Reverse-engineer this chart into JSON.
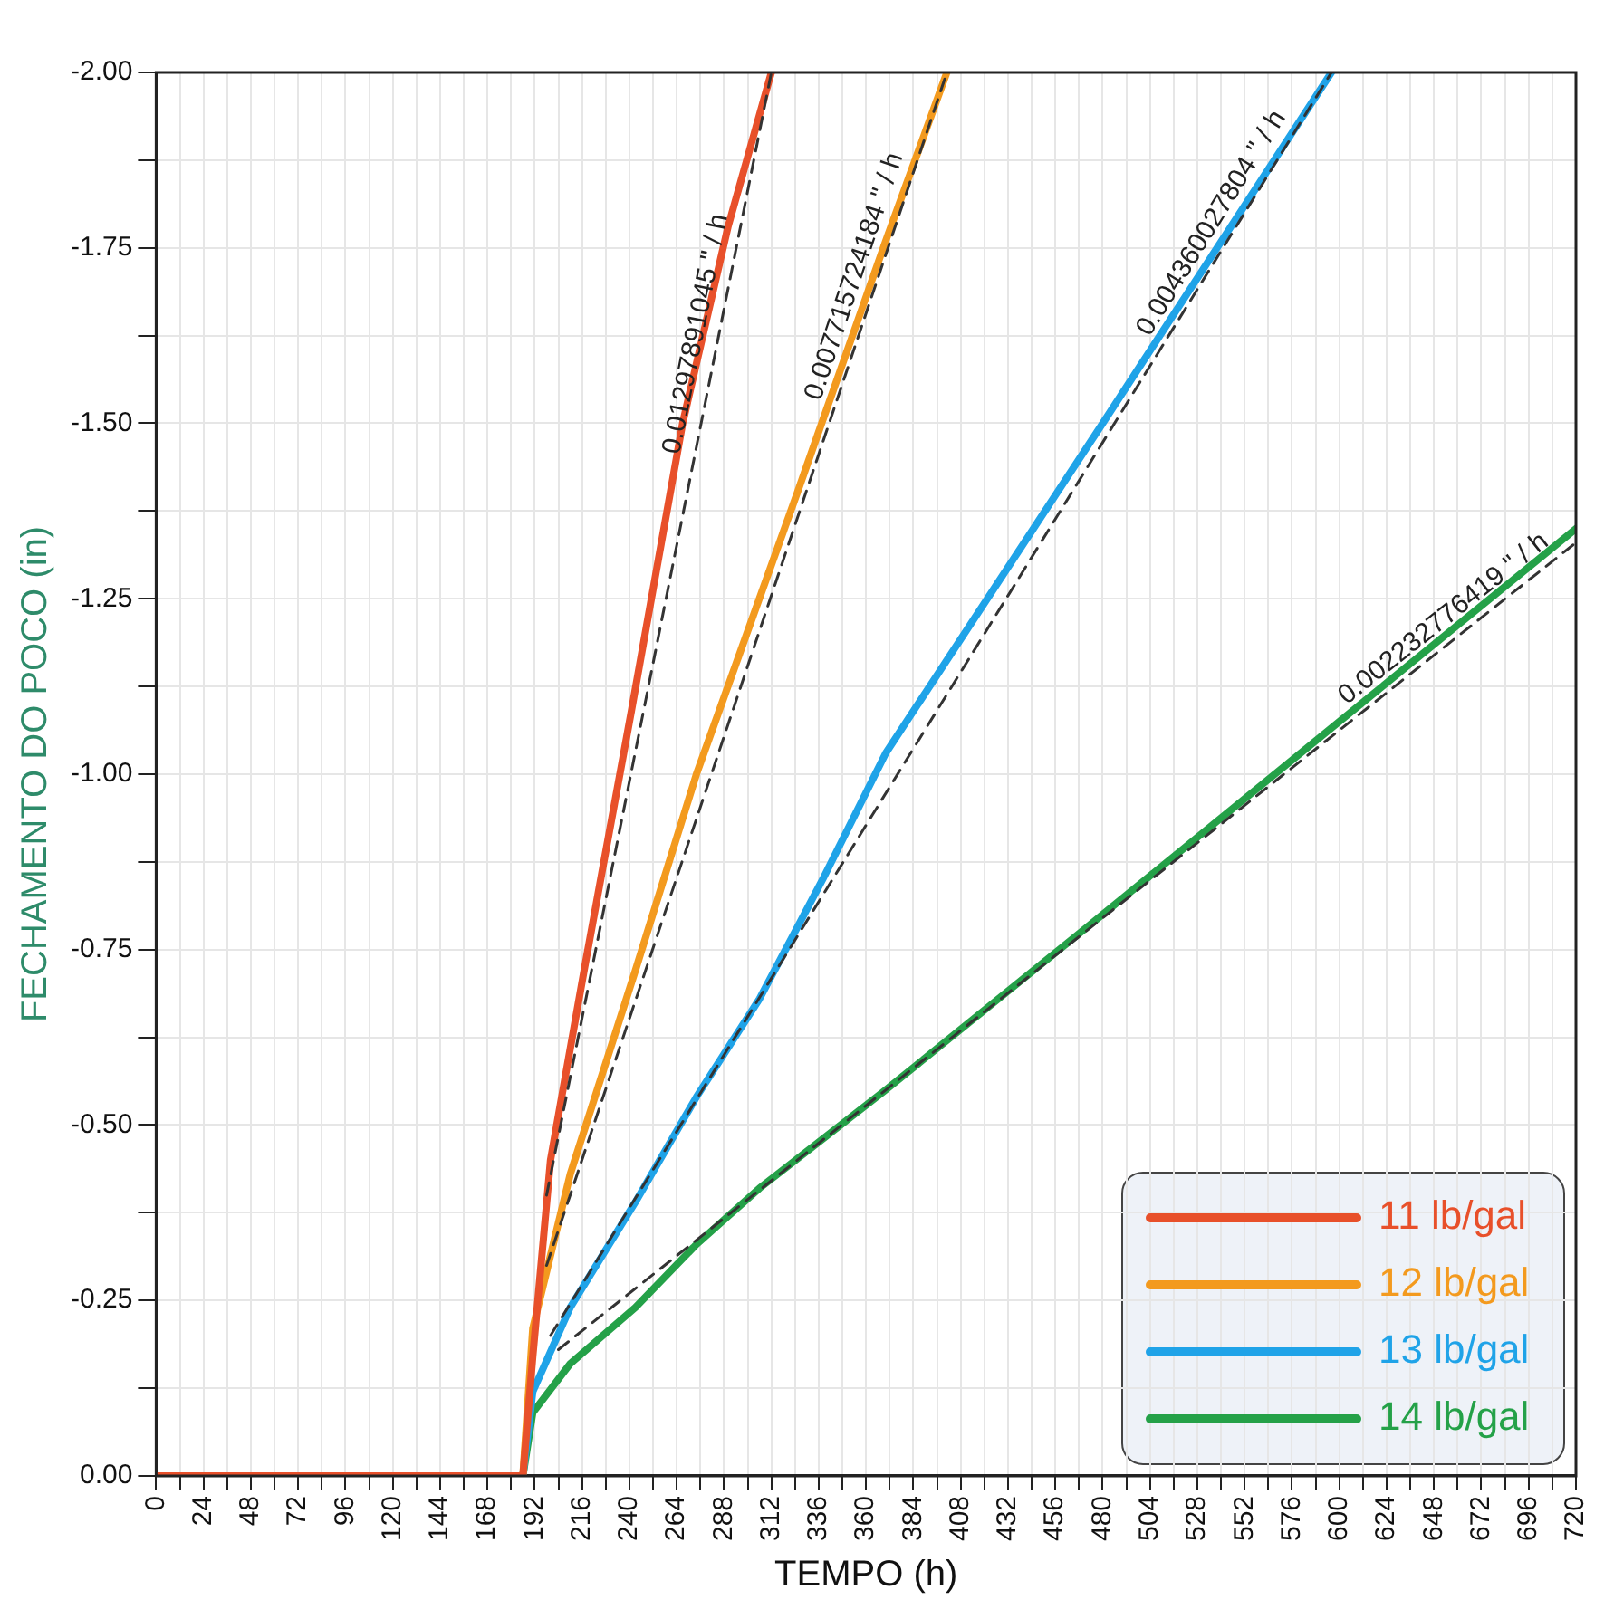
{
  "chart_data": {
    "type": "line",
    "xlabel": "TEMPO (h)",
    "ylabel": "FECHAMENTO DO POCO (in)",
    "xlim": [
      0,
      720
    ],
    "ylim": [
      0,
      -2
    ],
    "xticks": [
      0,
      {
        "value": 12,
        "label": null
      },
      24,
      {
        "value": 36,
        "label": null
      },
      48,
      {
        "value": 60,
        "label": null
      },
      72,
      {
        "value": 84,
        "label": null
      },
      96,
      {
        "value": 108,
        "label": null
      },
      120,
      {
        "value": 132,
        "label": null
      },
      144,
      {
        "value": 156,
        "label": null
      },
      168,
      {
        "value": 180,
        "label": null
      },
      192,
      {
        "value": 204,
        "label": null
      },
      216,
      {
        "value": 228,
        "label": null
      },
      240,
      {
        "value": 252,
        "label": null
      },
      264,
      {
        "value": 276,
        "label": null
      },
      288,
      {
        "value": 300,
        "label": null
      },
      312,
      {
        "value": 324,
        "label": null
      },
      336,
      {
        "value": 348,
        "label": null
      },
      360,
      {
        "value": 372,
        "label": null
      },
      384,
      {
        "value": 396,
        "label": null
      },
      408,
      {
        "value": 420,
        "label": null
      },
      432,
      {
        "value": 444,
        "label": null
      },
      456,
      {
        "value": 468,
        "label": null
      },
      480,
      {
        "value": 492,
        "label": null
      },
      504,
      {
        "value": 516,
        "label": null
      },
      528,
      {
        "value": 540,
        "label": null
      },
      552,
      {
        "value": 564,
        "label": null
      },
      576,
      {
        "value": 588,
        "label": null
      },
      600,
      {
        "value": 612,
        "label": null
      },
      624,
      {
        "value": 636,
        "label": null
      },
      648,
      {
        "value": 660,
        "label": null
      },
      672,
      {
        "value": 684,
        "label": null
      },
      {
        "value": 696,
        "label": "696"
      },
      {
        "value": 708,
        "label": null
      },
      720
    ],
    "yticks": [
      {
        "value": 0,
        "label": "0.00"
      },
      {
        "value": -0.125,
        "label": null
      },
      {
        "value": -0.25,
        "label": "-0.25"
      },
      {
        "value": -0.375,
        "label": null
      },
      {
        "value": -0.5,
        "label": "-0.50"
      },
      {
        "value": -0.625,
        "label": null
      },
      {
        "value": -0.75,
        "label": "-0.75"
      },
      {
        "value": -0.875,
        "label": null
      },
      {
        "value": -1,
        "label": "-1.00"
      },
      {
        "value": -1.125,
        "label": null
      },
      {
        "value": -1.25,
        "label": "-1.25"
      },
      {
        "value": -1.375,
        "label": null
      },
      {
        "value": -1.5,
        "label": "-1.50"
      },
      {
        "value": -1.625,
        "label": null
      },
      {
        "value": -1.75,
        "label": "-1.75"
      },
      {
        "value": -1.875,
        "label": null
      },
      {
        "value": -2,
        "label": "-2.00"
      }
    ],
    "grid": true,
    "legend": "bottom right",
    "marker": "none",
    "line_style": "solid",
    "series": [
      {
        "name": "11 lb/gal",
        "color": "#e8502a",
        "x": [
          0,
          186,
          191,
          200,
          217,
          241,
          267,
          290,
          312
        ],
        "values": [
          0,
          0,
          -0.17,
          -0.45,
          -0.72,
          -1.09,
          -1.5,
          -1.78,
          -2
        ]
      },
      {
        "name": "12 lb/gal",
        "color": "#f39a1e",
        "x": [
          0,
          186,
          191,
          210,
          243,
          274,
          325,
          370,
          401
        ],
        "values": [
          0,
          0,
          -0.21,
          -0.43,
          -0.72,
          -1.0,
          -1.4,
          -1.76,
          -2
        ]
      },
      {
        "name": "13 lb/gal",
        "color": "#1fa3e8",
        "x": [
          0,
          186,
          191,
          210,
          243,
          274,
          306,
          338,
          370,
          480,
          596
        ],
        "values": [
          0,
          0,
          -0.12,
          -0.24,
          -0.39,
          -0.54,
          -0.68,
          -0.85,
          -1.03,
          -1.5,
          -2
        ]
      },
      {
        "name": "14 lb/gal",
        "color": "#24a148",
        "x": [
          0,
          186,
          191,
          210,
          243,
          274,
          306,
          370,
          480,
          600,
          720
        ],
        "values": [
          0,
          0,
          -0.09,
          -0.16,
          -0.24,
          -0.33,
          -0.41,
          -0.55,
          -0.8,
          -1.075,
          -1.35
        ]
      },
      {
        "type": "line",
        "color": "#333333",
        "line_style": "dashed",
        "x": [
          198,
          312
        ],
        "values": [
          -0.4,
          -2
        ]
      },
      {
        "type": "line",
        "color": "#333333",
        "line_style": "dashed",
        "x": [
          198,
          401
        ],
        "values": [
          -0.3,
          -2
        ]
      },
      {
        "type": "line",
        "color": "#333333",
        "line_style": "dashed",
        "x": [
          200,
          596
        ],
        "values": [
          -0.2,
          -2
        ]
      },
      {
        "type": "line",
        "color": "#333333",
        "line_style": "dashed",
        "x": [
          204,
          720
        ],
        "values": [
          -0.18,
          -1.33
        ]
      }
    ],
    "annotations": [
      {
        "text": "0.01297891045 \" / h",
        "x": 285,
        "y": -1.621
      },
      {
        "text": "0.007715724184 \" / h",
        "x": 365,
        "y": -1.699
      },
      {
        "text": "0.004360027804 \" / h",
        "x": 545,
        "y": -1.768
      },
      {
        "text": "0.002232776419 \" / h",
        "x": 660,
        "y": -1.196
      }
    ]
  }
}
